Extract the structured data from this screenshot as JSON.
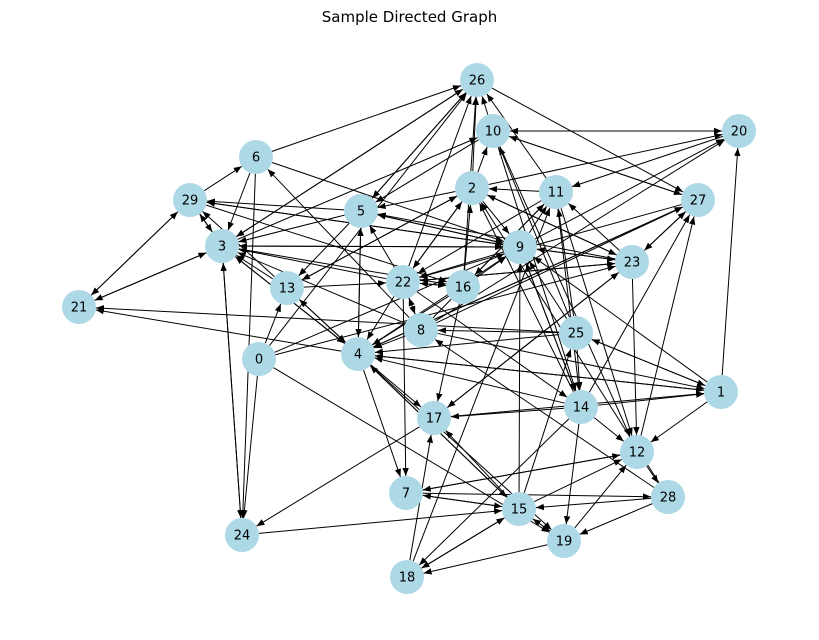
{
  "title": "Sample Directed Graph",
  "node_color": "#add8e6",
  "edge_color": "#000000",
  "nodes": [
    "0",
    "1",
    "2",
    "3",
    "4",
    "5",
    "6",
    "7",
    "8",
    "9",
    "10",
    "11",
    "12",
    "13",
    "14",
    "15",
    "16",
    "17",
    "18",
    "19",
    "20",
    "21",
    "22",
    "23",
    "24",
    "25",
    "26",
    "27",
    "28",
    "29"
  ],
  "edges": [
    [
      "0",
      "13"
    ],
    [
      "0",
      "24"
    ],
    [
      "0",
      "9"
    ],
    [
      "0",
      "19"
    ],
    [
      "0",
      "23"
    ],
    [
      "0",
      "26"
    ],
    [
      "1",
      "20"
    ],
    [
      "1",
      "12"
    ],
    [
      "1",
      "9"
    ],
    [
      "1",
      "25"
    ],
    [
      "1",
      "4"
    ],
    [
      "2",
      "5"
    ],
    [
      "2",
      "13"
    ],
    [
      "2",
      "22"
    ],
    [
      "2",
      "23"
    ],
    [
      "2",
      "26"
    ],
    [
      "2",
      "10"
    ],
    [
      "2",
      "9"
    ],
    [
      "2",
      "20"
    ],
    [
      "3",
      "21"
    ],
    [
      "3",
      "24"
    ],
    [
      "3",
      "26"
    ],
    [
      "3",
      "9"
    ],
    [
      "3",
      "16"
    ],
    [
      "3",
      "4"
    ],
    [
      "3",
      "10"
    ],
    [
      "3",
      "29"
    ],
    [
      "4",
      "13"
    ],
    [
      "4",
      "3"
    ],
    [
      "4",
      "7"
    ],
    [
      "4",
      "17"
    ],
    [
      "4",
      "21"
    ],
    [
      "4",
      "15"
    ],
    [
      "4",
      "19"
    ],
    [
      "4",
      "1"
    ],
    [
      "4",
      "5"
    ],
    [
      "4",
      "9"
    ],
    [
      "4",
      "27"
    ],
    [
      "5",
      "3"
    ],
    [
      "5",
      "9"
    ],
    [
      "5",
      "26"
    ],
    [
      "5",
      "4"
    ],
    [
      "5",
      "13"
    ],
    [
      "5",
      "29"
    ],
    [
      "6",
      "3"
    ],
    [
      "6",
      "26"
    ],
    [
      "6",
      "24"
    ],
    [
      "6",
      "9"
    ],
    [
      "7",
      "15"
    ],
    [
      "7",
      "12"
    ],
    [
      "7",
      "28"
    ],
    [
      "8",
      "4"
    ],
    [
      "8",
      "22"
    ],
    [
      "8",
      "11"
    ],
    [
      "8",
      "20"
    ],
    [
      "8",
      "27"
    ],
    [
      "8",
      "1"
    ],
    [
      "8",
      "3"
    ],
    [
      "8",
      "6"
    ],
    [
      "9",
      "11"
    ],
    [
      "9",
      "22"
    ],
    [
      "9",
      "29"
    ],
    [
      "9",
      "3"
    ],
    [
      "9",
      "14"
    ],
    [
      "9",
      "20"
    ],
    [
      "9",
      "5"
    ],
    [
      "9",
      "23"
    ],
    [
      "10",
      "26"
    ],
    [
      "10",
      "20"
    ],
    [
      "10",
      "5"
    ],
    [
      "10",
      "14"
    ],
    [
      "10",
      "27"
    ],
    [
      "10",
      "12"
    ],
    [
      "11",
      "2"
    ],
    [
      "11",
      "22"
    ],
    [
      "11",
      "14"
    ],
    [
      "11",
      "12"
    ],
    [
      "11",
      "16"
    ],
    [
      "11",
      "26"
    ],
    [
      "12",
      "27"
    ],
    [
      "12",
      "28"
    ],
    [
      "12",
      "7"
    ],
    [
      "13",
      "29"
    ],
    [
      "13",
      "22"
    ],
    [
      "13",
      "3"
    ],
    [
      "13",
      "4"
    ],
    [
      "13",
      "2"
    ],
    [
      "14",
      "27"
    ],
    [
      "14",
      "17"
    ],
    [
      "14",
      "12"
    ],
    [
      "14",
      "4"
    ],
    [
      "14",
      "19"
    ],
    [
      "14",
      "18"
    ],
    [
      "14",
      "1"
    ],
    [
      "14",
      "9"
    ],
    [
      "14",
      "2"
    ],
    [
      "15",
      "17"
    ],
    [
      "15",
      "4"
    ],
    [
      "15",
      "7"
    ],
    [
      "15",
      "19"
    ],
    [
      "15",
      "18"
    ],
    [
      "15",
      "9"
    ],
    [
      "15",
      "12"
    ],
    [
      "15",
      "25"
    ],
    [
      "16",
      "17"
    ],
    [
      "16",
      "9"
    ],
    [
      "16",
      "26"
    ],
    [
      "16",
      "2"
    ],
    [
      "16",
      "22"
    ],
    [
      "16",
      "4"
    ],
    [
      "17",
      "24"
    ],
    [
      "17",
      "1"
    ],
    [
      "17",
      "23"
    ],
    [
      "18",
      "17"
    ],
    [
      "18",
      "15"
    ],
    [
      "18",
      "11"
    ],
    [
      "19",
      "15"
    ],
    [
      "19",
      "12"
    ],
    [
      "19",
      "18"
    ],
    [
      "20",
      "10"
    ],
    [
      "20",
      "11"
    ],
    [
      "21",
      "29"
    ],
    [
      "21",
      "3"
    ],
    [
      "22",
      "4"
    ],
    [
      "22",
      "7"
    ],
    [
      "22",
      "3"
    ],
    [
      "22",
      "8"
    ],
    [
      "22",
      "5"
    ],
    [
      "22",
      "16"
    ],
    [
      "22",
      "26"
    ],
    [
      "22",
      "23"
    ],
    [
      "22",
      "14"
    ],
    [
      "22",
      "2"
    ],
    [
      "23",
      "17"
    ],
    [
      "23",
      "27"
    ],
    [
      "23",
      "12"
    ],
    [
      "23",
      "22"
    ],
    [
      "23",
      "5"
    ],
    [
      "23",
      "2"
    ],
    [
      "23",
      "11"
    ],
    [
      "23",
      "9"
    ],
    [
      "24",
      "15"
    ],
    [
      "24",
      "3"
    ],
    [
      "25",
      "10"
    ],
    [
      "25",
      "14"
    ],
    [
      "25",
      "1"
    ],
    [
      "25",
      "9"
    ],
    [
      "25",
      "4"
    ],
    [
      "25",
      "11"
    ],
    [
      "25",
      "21"
    ],
    [
      "25",
      "8"
    ],
    [
      "26",
      "27"
    ],
    [
      "26",
      "5"
    ],
    [
      "26",
      "3"
    ],
    [
      "27",
      "23"
    ],
    [
      "27",
      "10"
    ],
    [
      "27",
      "4"
    ],
    [
      "27",
      "22"
    ],
    [
      "28",
      "19"
    ],
    [
      "28",
      "2"
    ],
    [
      "28",
      "8"
    ],
    [
      "28",
      "15"
    ],
    [
      "29",
      "3"
    ],
    [
      "29",
      "6"
    ],
    [
      "29",
      "21"
    ],
    [
      "29",
      "9"
    ],
    [
      "29",
      "16"
    ]
  ]
}
